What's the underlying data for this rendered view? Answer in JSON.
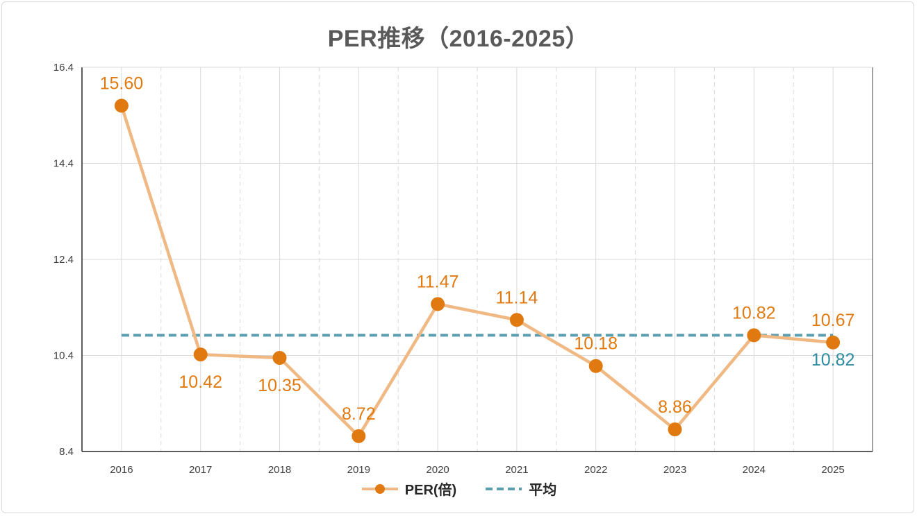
{
  "chart_data": {
    "type": "line",
    "title": "PER推移（2016-2025）",
    "categories": [
      "2016",
      "2017",
      "2018",
      "2019",
      "2020",
      "2021",
      "2022",
      "2023",
      "2024",
      "2025"
    ],
    "series": [
      {
        "name": "PER(倍)",
        "values": [
          15.6,
          10.42,
          10.35,
          8.72,
          11.47,
          11.14,
          10.18,
          8.86,
          10.82,
          10.67
        ],
        "labels": [
          "15.60",
          "10.42",
          "10.35",
          "8.72",
          "11.47",
          "11.14",
          "10.18",
          "8.86",
          "10.82",
          "10.67"
        ],
        "label_positions": [
          "above",
          "below",
          "below",
          "above",
          "above",
          "above",
          "above",
          "above",
          "above",
          "above"
        ],
        "color": "#E07A10",
        "line_color": "#F0B882"
      },
      {
        "name": "平均",
        "values": [
          10.82,
          10.82,
          10.82,
          10.82,
          10.82,
          10.82,
          10.82,
          10.82,
          10.82,
          10.82
        ],
        "end_label": "10.82",
        "color": "#5B9EB0",
        "label_color": "#2E8BA0"
      }
    ],
    "yticks": [
      "8.4",
      "10.4",
      "12.4",
      "14.4",
      "16.4"
    ],
    "ylim": [
      8.4,
      16.4
    ],
    "grid": true,
    "legend": "bottom-center"
  }
}
